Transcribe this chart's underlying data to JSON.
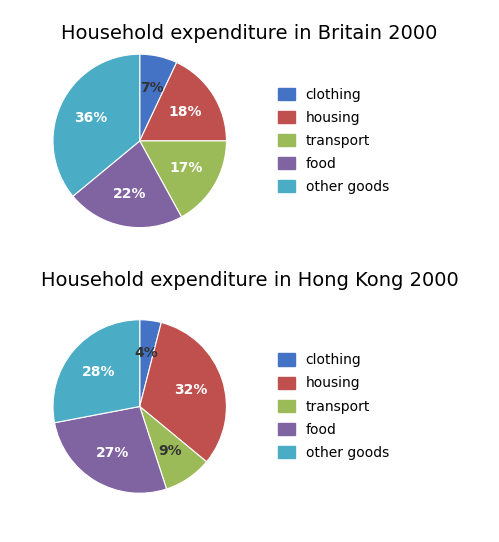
{
  "britain": {
    "title": "Household expenditure in Britain 2000",
    "labels": [
      "clothing",
      "housing",
      "transport",
      "food",
      "other goods"
    ],
    "values": [
      7,
      18,
      17,
      22,
      36
    ],
    "colors": [
      "#4472C4",
      "#C0504D",
      "#9BBB59",
      "#8064A2",
      "#4BACC6"
    ],
    "pct_labels": [
      "7%",
      "18%",
      "17%",
      "22%",
      "36%"
    ]
  },
  "hongkong": {
    "title": "Household expenditure in Hong Kong 2000",
    "labels": [
      "clothing",
      "housing",
      "transport",
      "food",
      "other goods"
    ],
    "values": [
      4,
      32,
      9,
      27,
      28
    ],
    "colors": [
      "#4472C4",
      "#C0504D",
      "#9BBB59",
      "#8064A2",
      "#4BACC6"
    ],
    "pct_labels": [
      "4%",
      "32%",
      "9%",
      "27%",
      "28%"
    ]
  },
  "legend_labels": [
    "clothing",
    "housing",
    "transport",
    "food",
    "other goods"
  ],
  "legend_colors": [
    "#4472C4",
    "#C0504D",
    "#9BBB59",
    "#8064A2",
    "#4BACC6"
  ],
  "title_fontsize": 14,
  "label_fontsize": 10,
  "legend_fontsize": 10,
  "background_color": "#FFFFFF"
}
